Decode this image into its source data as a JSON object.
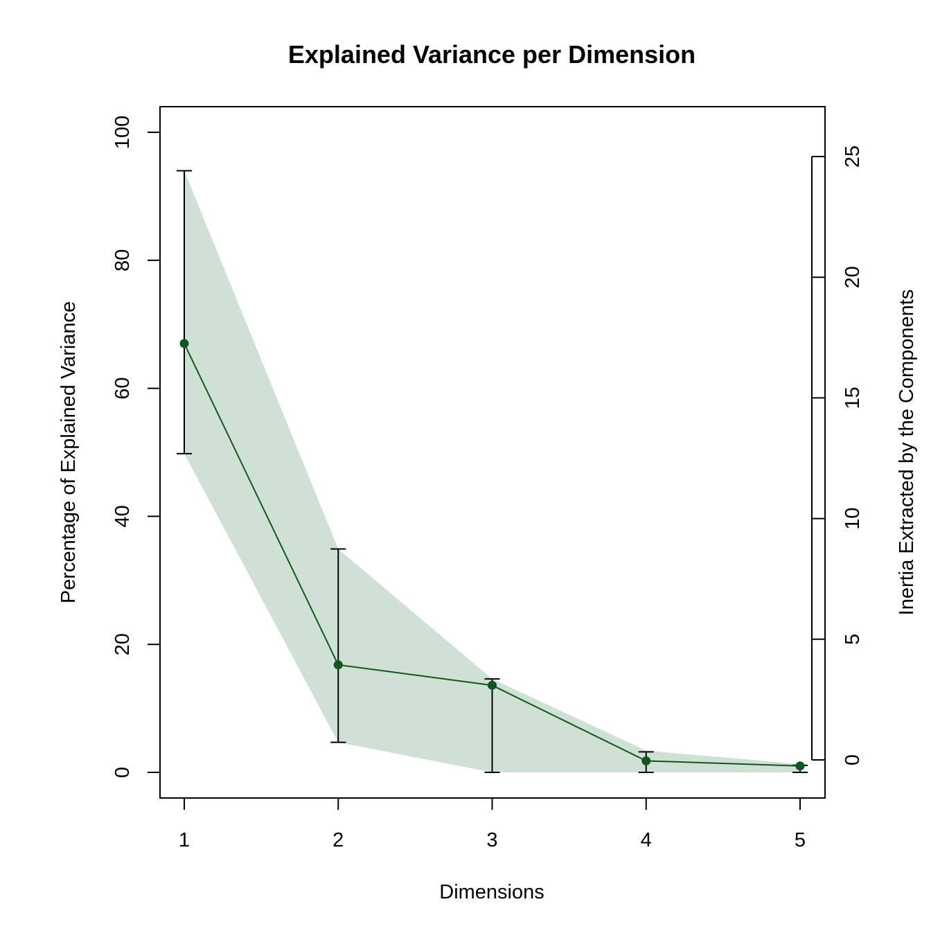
{
  "chart_data": {
    "type": "line",
    "title": "Explained Variance per Dimension",
    "xlabel": "Dimensions",
    "ylabel": "Percentage of Explained Variance",
    "y2label": "Inertia Extracted by the Components",
    "x": [
      1,
      2,
      3,
      4,
      5
    ],
    "xticks": [
      "1",
      "2",
      "3",
      "4",
      "5"
    ],
    "ylim": [
      0,
      100
    ],
    "yticks": [
      "0",
      "20",
      "40",
      "60",
      "80",
      "100"
    ],
    "y2lim": [
      0,
      25
    ],
    "y2ticks": [
      "0",
      "5",
      "10",
      "15",
      "20",
      "25"
    ],
    "series": [
      {
        "values": [
          67.0,
          16.8,
          13.6,
          1.8,
          1.0
        ],
        "ci_lower": [
          49.8,
          4.7,
          0.0,
          0.0,
          0.0
        ],
        "ci_upper": [
          94.0,
          34.9,
          14.6,
          3.2,
          1.1
        ],
        "band_lower": [
          49.8,
          4.7,
          0.0,
          0.0,
          0.0
        ],
        "band_upper": [
          94.0,
          34.9,
          14.6,
          3.4,
          1.3
        ]
      }
    ],
    "grid": false,
    "legend": "none",
    "colors": {
      "line": "#12561f",
      "point": "#12561f",
      "band": "#cfe0d4",
      "errorbar": "#000000"
    }
  }
}
